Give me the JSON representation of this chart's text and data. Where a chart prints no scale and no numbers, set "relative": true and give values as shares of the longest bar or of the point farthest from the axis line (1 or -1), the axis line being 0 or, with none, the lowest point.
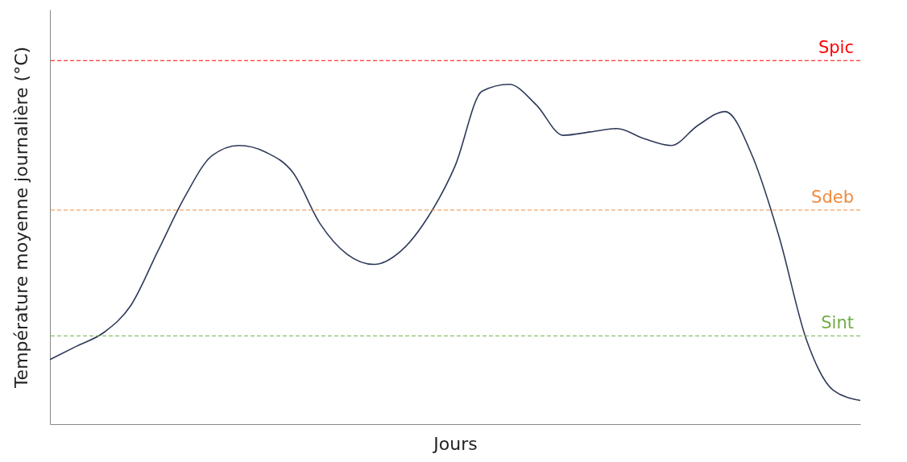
{
  "chart_data": {
    "type": "line",
    "relative": true,
    "xlabel": "Jours",
    "ylabel": "Température  moyenne journalière (°C)",
    "categories": [
      null,
      null,
      null,
      null,
      null,
      null,
      null,
      null,
      null,
      null,
      null,
      null,
      null,
      null,
      null,
      null,
      null,
      null,
      null,
      null,
      null,
      null,
      null,
      null,
      null,
      null,
      null,
      null,
      null,
      null,
      null
    ],
    "series": [
      {
        "color": "#2e3a59",
        "values": [
          0.19,
          0.23,
          0.27,
          0.35,
          0.51,
          0.67,
          0.79,
          0.82,
          0.8,
          0.74,
          0.59,
          0.5,
          0.47,
          0.51,
          0.61,
          0.76,
          0.98,
          1,
          0.94,
          0.85,
          0.86,
          0.87,
          0.84,
          0.82,
          0.88,
          0.92,
          0.79,
          0.55,
          0.25,
          0.1,
          0.07
        ]
      }
    ],
    "ref_lines": [
      {
        "axis": "y",
        "value": 1.07,
        "label": "Spic",
        "color": "#ff0000",
        "line_style": "dashed"
      },
      {
        "axis": "y",
        "value": 0.63,
        "label": "Sdeb",
        "color": "#f08a3c",
        "line_style": "dashed"
      },
      {
        "axis": "y",
        "value": 0.26,
        "label": "Sint",
        "color": "#70ad47",
        "line_style": "dashed"
      }
    ],
    "grid": false,
    "marker": "none",
    "line_style": "solid"
  }
}
